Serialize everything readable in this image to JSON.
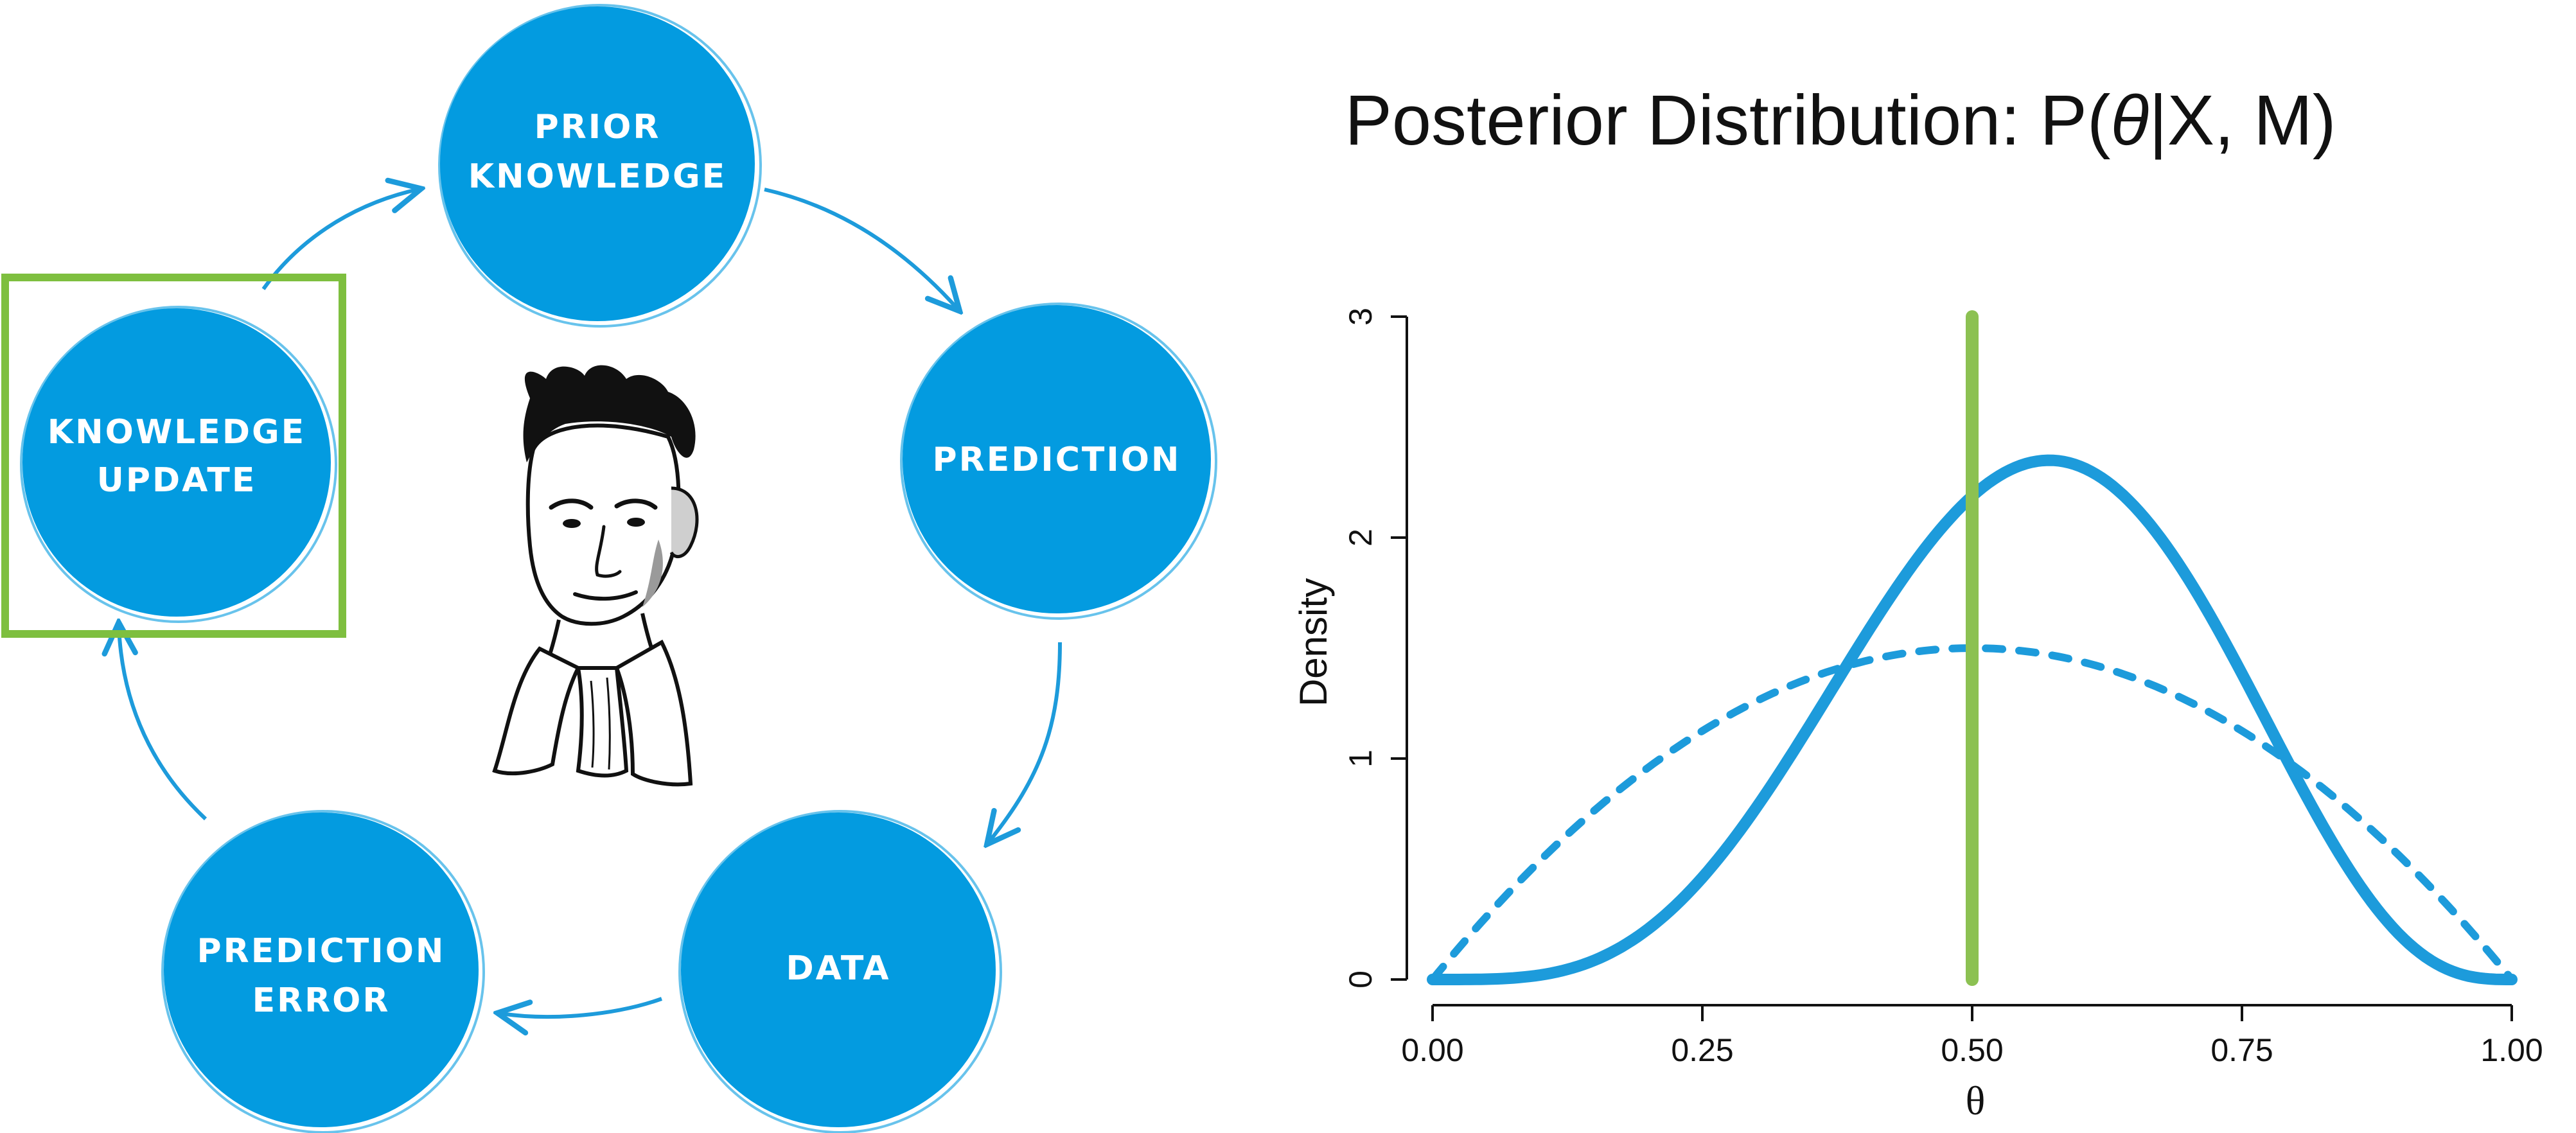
{
  "cycle": {
    "nodes": [
      {
        "id": "prior",
        "line1": "PRIOR",
        "line2": "KNOWLEDGE"
      },
      {
        "id": "prediction",
        "line1": "PREDICTION",
        "line2": ""
      },
      {
        "id": "data",
        "line1": "DATA",
        "line2": ""
      },
      {
        "id": "error",
        "line1": "PREDICTION",
        "line2": "ERROR"
      },
      {
        "id": "update",
        "line1": "KNOWLEDGE",
        "line2": "UPDATE"
      }
    ],
    "highlight": "update",
    "colors": {
      "node": "#039BE0",
      "arrow": "#1D9BDB",
      "highlight": "#7EBF3F"
    }
  },
  "chart_data": {
    "type": "line",
    "title_prefix": "Posterior Distribution: P(",
    "title_theta": "θ",
    "title_suffix": "|X, M)",
    "xlabel": "θ",
    "ylabel": "Density",
    "xlim": [
      0,
      1
    ],
    "ylim": [
      0,
      3
    ],
    "xticks": [
      "0.00",
      "0.25",
      "0.50",
      "0.75",
      "1.00"
    ],
    "yticks": [
      "0",
      "1",
      "2",
      "3"
    ],
    "series": [
      {
        "distribution": "beta",
        "a": 5,
        "b": 4,
        "style": "solid",
        "color": "#1D9BDB"
      },
      {
        "distribution": "beta",
        "a": 2,
        "b": 2,
        "style": "dashed",
        "color": "#1D9BDB"
      }
    ],
    "vline": {
      "x": 0.5,
      "color": "#8CC152"
    }
  }
}
